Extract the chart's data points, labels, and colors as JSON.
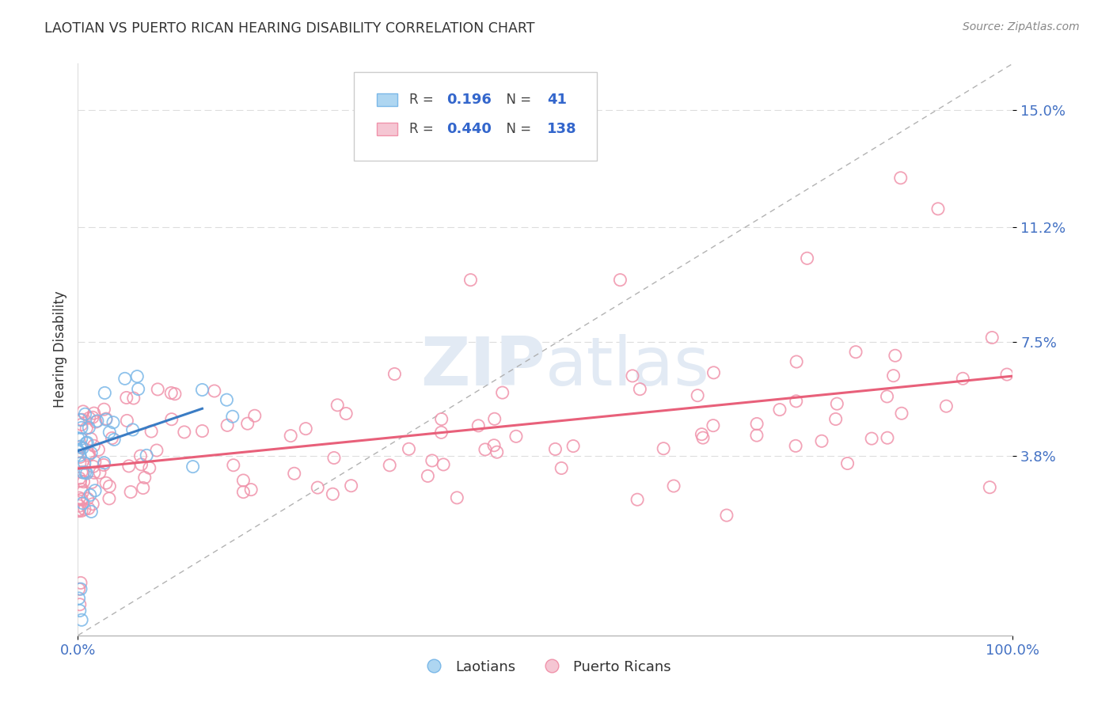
{
  "title": "LAOTIAN VS PUERTO RICAN HEARING DISABILITY CORRELATION CHART",
  "source": "Source: ZipAtlas.com",
  "ylabel": "Hearing Disability",
  "legend_R_laotian": "0.196",
  "legend_N_laotian": "41",
  "legend_R_puerto": "0.440",
  "legend_N_puerto": "138",
  "scatter_color_laotian": "#7BB8E8",
  "scatter_color_puerto": "#F093AB",
  "trend_color_laotian": "#3A7CC4",
  "trend_color_puerto": "#E8607A",
  "ytick_labels": [
    "3.8%",
    "7.5%",
    "11.2%",
    "15.0%"
  ],
  "ytick_values": [
    0.038,
    0.075,
    0.112,
    0.15
  ],
  "ytick_color": "#4472C4",
  "xtick_color": "#4472C4",
  "xlim": [
    0.0,
    1.0
  ],
  "ylim": [
    -0.02,
    0.165
  ],
  "background_color": "#ffffff",
  "grid_color": "#DDDDDD",
  "ref_line_color": "#AAAAAA",
  "legend_edge_color": "#CCCCCC",
  "legend_box_color_laotian": "#AED6F1",
  "legend_box_color_puerto": "#F5C6D3",
  "watermark_color": "#E2EAF4",
  "title_color": "#333333",
  "source_color": "#888888",
  "label_color": "#333333"
}
